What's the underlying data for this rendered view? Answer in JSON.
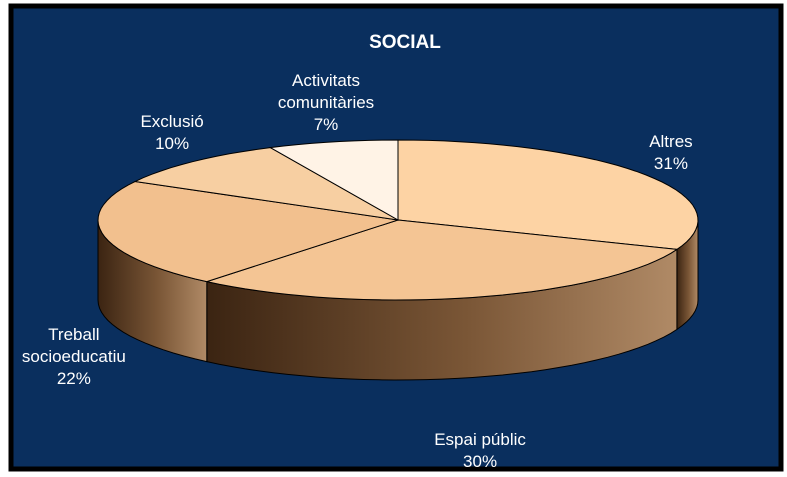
{
  "chart_data": {
    "type": "pie3d",
    "title": "SOCIAL",
    "categories": [
      "Altres",
      "Espai públic",
      "Treball socioeducatiu",
      "Exclusió",
      "Activitats comunitàries"
    ],
    "values": [
      31,
      30,
      22,
      10,
      7
    ],
    "value_labels": [
      "31%",
      "30%",
      "22%",
      "10%",
      "7%"
    ],
    "colors": [
      "#fdd3a4",
      "#f4c594",
      "#f2c08e",
      "#f7cfa2",
      "#fff3e6"
    ]
  }
}
